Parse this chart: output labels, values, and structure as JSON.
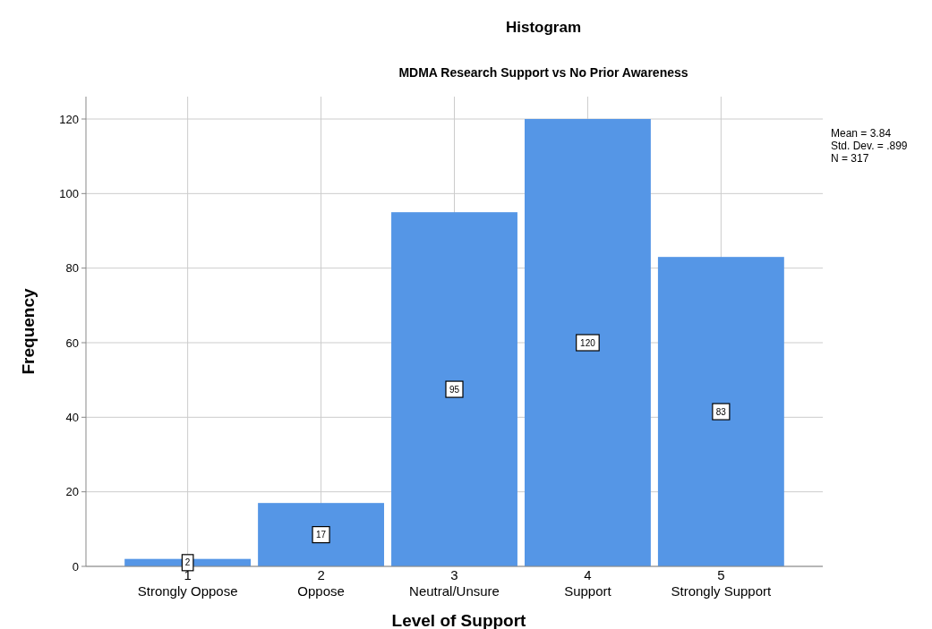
{
  "chart_data": {
    "type": "bar",
    "title": "Histogram",
    "subtitle": "MDMA Research Support vs No Prior Awareness",
    "xlabel": "Level of Support",
    "ylabel": "Frequency",
    "categories": [
      "1\nStrongly Oppose",
      "2\nOppose",
      "3\nNeutral/Unsure",
      "4\nSupport",
      "5\nStrongly Support"
    ],
    "values": [
      2,
      17,
      95,
      120,
      83
    ],
    "color": "#5596e6",
    "ylim": [
      0,
      126
    ],
    "yticks": [
      0,
      20,
      40,
      60,
      80,
      100,
      120
    ],
    "grid": true,
    "data_labels": true,
    "annotations": [
      "Mean = 3.84",
      "Std. Dev. = .899",
      "N = 317"
    ]
  }
}
